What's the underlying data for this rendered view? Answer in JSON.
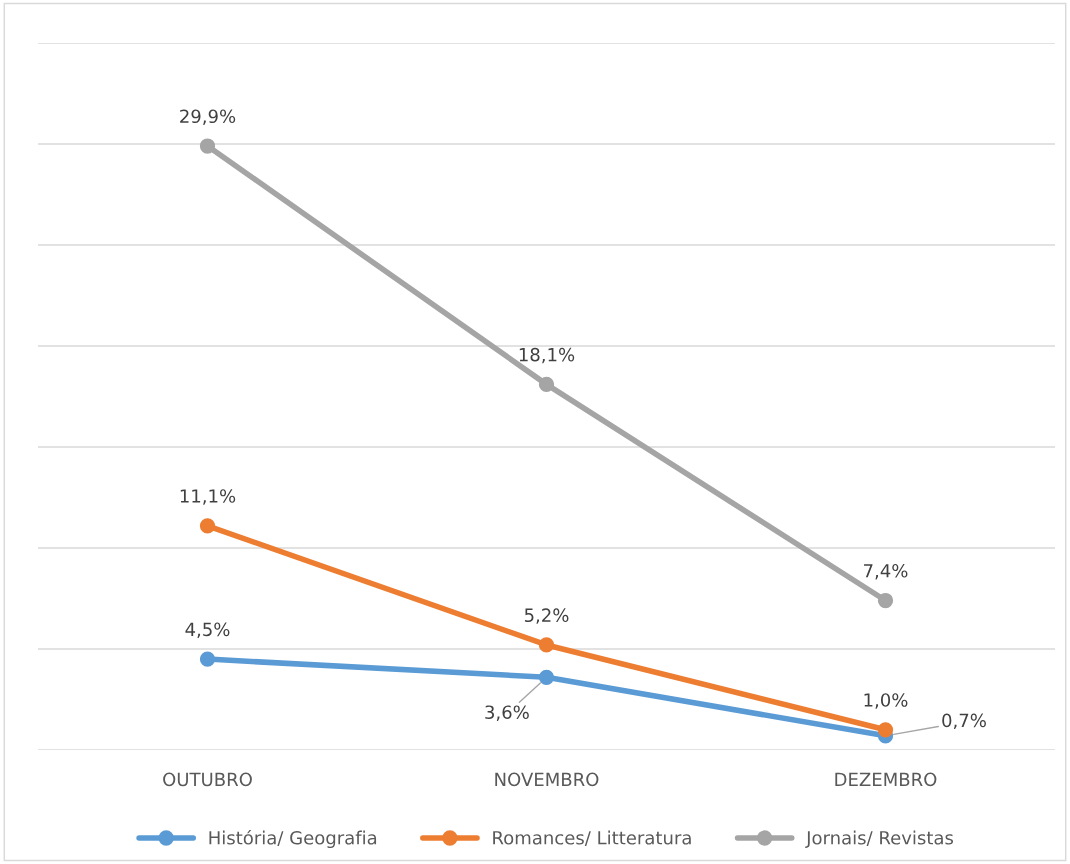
{
  "chart_data": {
    "type": "line",
    "categories": [
      "OUTUBRO",
      "NOVEMBRO",
      "DEZEMBRO"
    ],
    "series": [
      {
        "name": "História/ Geografia",
        "color": "#5b9bd5",
        "values": [
          4.5,
          3.6,
          0.7
        ],
        "value_labels": [
          "4,5%",
          "3,6%",
          "0,7%"
        ]
      },
      {
        "name": "Romances/ Litteratura",
        "color": "#ed7d31",
        "values": [
          11.1,
          5.2,
          1.0
        ],
        "value_labels": [
          "11,1%",
          "5,2%",
          "1,0%"
        ]
      },
      {
        "name": "Jornais/ Revistas",
        "color": "#a5a5a5",
        "values": [
          29.9,
          18.1,
          7.4
        ],
        "value_labels": [
          "29,9%",
          "18,1%",
          "7,4%"
        ]
      }
    ],
    "ylim": [
      0,
      35
    ],
    "yticks": [
      0,
      5,
      10,
      15,
      20,
      25,
      30,
      35
    ],
    "tick_labels": "x",
    "grid": "y",
    "legend": "bottom",
    "marker": "circle",
    "line_style": "solid"
  }
}
